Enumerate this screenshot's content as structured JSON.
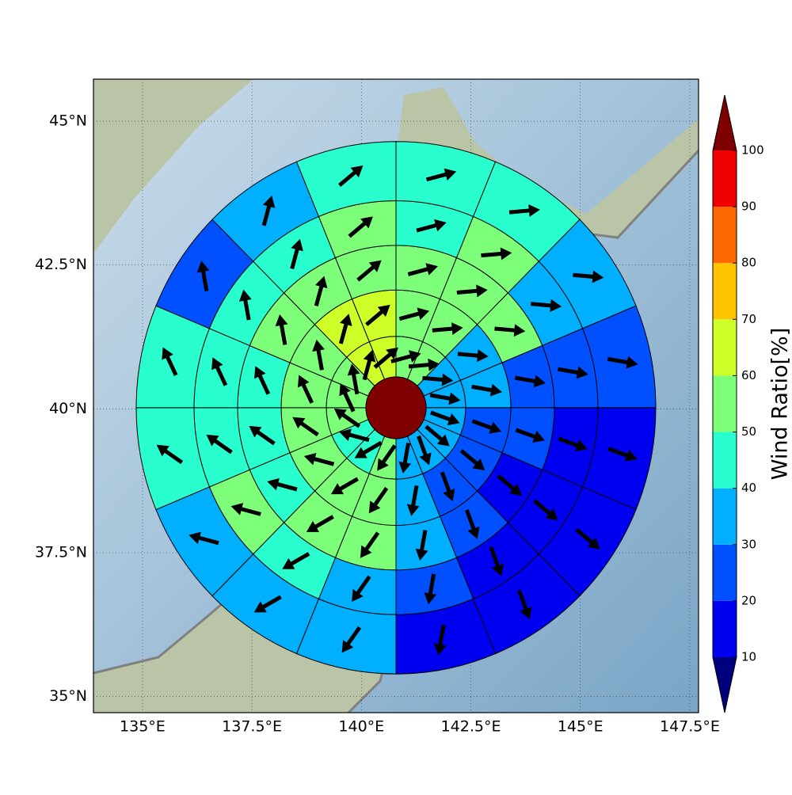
{
  "chart_data": {
    "type": "polar-sector-map",
    "xlim": [
      133.88,
      147.7
    ],
    "ylim": [
      34.72,
      45.73
    ],
    "xticks": [
      {
        "value": 135,
        "label": "135°E"
      },
      {
        "value": 137.5,
        "label": "137.5°E"
      },
      {
        "value": 140,
        "label": "140°E"
      },
      {
        "value": 142.5,
        "label": "142.5°E"
      },
      {
        "value": 145,
        "label": "145°E"
      },
      {
        "value": 147.5,
        "label": "147.5°E"
      }
    ],
    "yticks": [
      {
        "value": 35,
        "label": "35°N"
      },
      {
        "value": 37.5,
        "label": "37.5°N"
      },
      {
        "value": 40,
        "label": "40°N"
      },
      {
        "value": 42.5,
        "label": "42.5°N"
      },
      {
        "value": 45,
        "label": "45°N"
      }
    ],
    "grid": true,
    "center": [
      140.79,
      40.02
    ],
    "center_value": 105,
    "rings": [
      {
        "values": [
          55,
          55,
          35,
          35,
          35,
          35,
          35,
          35,
          55,
          45,
          45,
          55,
          55,
          55,
          65,
          65
        ]
      },
      {
        "values": [
          55,
          55,
          35,
          35,
          25,
          25,
          25,
          35,
          55,
          55,
          55,
          55,
          55,
          55,
          65,
          65
        ]
      },
      {
        "values": [
          55,
          55,
          55,
          25,
          25,
          15,
          25,
          35,
          55,
          55,
          45,
          45,
          45,
          55,
          55,
          55
        ]
      },
      {
        "values": [
          45,
          55,
          35,
          25,
          15,
          15,
          15,
          25,
          35,
          45,
          55,
          45,
          45,
          45,
          45,
          55
        ]
      },
      {
        "values": [
          45,
          45,
          35,
          25,
          15,
          15,
          15,
          15,
          35,
          35,
          35,
          45,
          45,
          25,
          35,
          45
        ]
      }
    ],
    "arrow_direction": [
      75,
      85,
      95,
      100,
      110,
      130,
      160,
      190,
      215,
      240,
      285,
      305,
      335,
      350,
      15,
      50
    ],
    "colorbar": {
      "label": "Wind Ratio[%]",
      "levels": [
        10,
        20,
        30,
        40,
        50,
        60,
        70,
        80,
        90,
        100
      ],
      "colors": [
        "#0000f0",
        "#0050ff",
        "#00b0ff",
        "#29ffce",
        "#7dff7a",
        "#ceff29",
        "#ffc400",
        "#ff6800",
        "#f00000"
      ],
      "under_color": "#00007f",
      "over_color": "#7f0000"
    }
  }
}
